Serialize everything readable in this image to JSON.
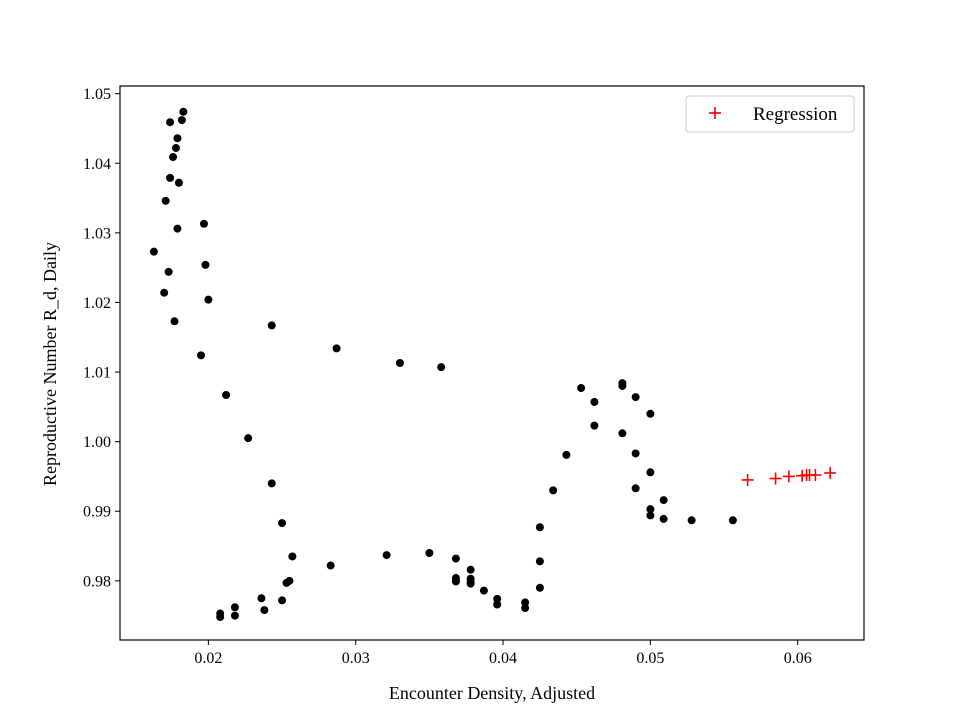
{
  "chart_data": {
    "type": "scatter",
    "xlabel": "Encounter Density, Adjusted",
    "ylabel": "Reproductive Number R_d, Daily",
    "xlim": [
      0.014,
      0.0645
    ],
    "ylim": [
      0.9715,
      1.0511
    ],
    "x_ticks": [
      0.02,
      0.03,
      0.04,
      0.05,
      0.06
    ],
    "x_tick_labels": [
      "0.02",
      "0.03",
      "0.04",
      "0.05",
      "0.06"
    ],
    "y_ticks": [
      0.98,
      0.99,
      1.0,
      1.01,
      1.02,
      1.03,
      1.04,
      1.05
    ],
    "y_tick_labels": [
      "0.98",
      "0.99",
      "1.00",
      "1.01",
      "1.02",
      "1.03",
      "1.04",
      "1.05"
    ],
    "grid": false,
    "legend_position": "top-right",
    "legend": [
      "Regression"
    ],
    "series": [
      {
        "marker": "dot",
        "color": "#000000",
        "points": [
          [
            0.0183,
            1.0474
          ],
          [
            0.0182,
            1.0462
          ],
          [
            0.0174,
            1.0459
          ],
          [
            0.0179,
            1.0436
          ],
          [
            0.0178,
            1.0422
          ],
          [
            0.0176,
            1.0409
          ],
          [
            0.0174,
            1.0379
          ],
          [
            0.018,
            1.0372
          ],
          [
            0.0171,
            1.0346
          ],
          [
            0.0197,
            1.0313
          ],
          [
            0.0179,
            1.0306
          ],
          [
            0.0163,
            1.0273
          ],
          [
            0.0198,
            1.0254
          ],
          [
            0.0173,
            1.0244
          ],
          [
            0.017,
            1.0214
          ],
          [
            0.02,
            1.0204
          ],
          [
            0.0177,
            1.0173
          ],
          [
            0.0243,
            1.0167
          ],
          [
            0.0287,
            1.0134
          ],
          [
            0.0195,
            1.0124
          ],
          [
            0.033,
            1.0113
          ],
          [
            0.0358,
            1.0107
          ],
          [
            0.0212,
            1.0067
          ],
          [
            0.0227,
            1.0005
          ],
          [
            0.0243,
            0.994
          ],
          [
            0.025,
            0.9883
          ],
          [
            0.0257,
            0.9835
          ],
          [
            0.0255,
            0.98
          ],
          [
            0.0253,
            0.9797
          ],
          [
            0.025,
            0.9772
          ],
          [
            0.0236,
            0.9775
          ],
          [
            0.0238,
            0.9758
          ],
          [
            0.0218,
            0.9762
          ],
          [
            0.0218,
            0.975
          ],
          [
            0.0208,
            0.9753
          ],
          [
            0.0208,
            0.9748
          ],
          [
            0.0283,
            0.9822
          ],
          [
            0.0321,
            0.9837
          ],
          [
            0.035,
            0.984
          ],
          [
            0.0368,
            0.9832
          ],
          [
            0.0368,
            0.9804
          ],
          [
            0.0368,
            0.9801
          ],
          [
            0.0368,
            0.9799
          ],
          [
            0.0378,
            0.9816
          ],
          [
            0.0378,
            0.9803
          ],
          [
            0.0378,
            0.9799
          ],
          [
            0.0378,
            0.9796
          ],
          [
            0.0387,
            0.9786
          ],
          [
            0.0396,
            0.9774
          ],
          [
            0.0396,
            0.9766
          ],
          [
            0.0415,
            0.9769
          ],
          [
            0.0415,
            0.9761
          ],
          [
            0.0425,
            0.979
          ],
          [
            0.0425,
            0.9828
          ],
          [
            0.0425,
            0.9877
          ],
          [
            0.0434,
            0.993
          ],
          [
            0.0443,
            0.9981
          ],
          [
            0.0453,
            1.0077
          ],
          [
            0.0462,
            1.0057
          ],
          [
            0.0462,
            1.0023
          ],
          [
            0.0481,
            1.0084
          ],
          [
            0.0481,
            1.008
          ],
          [
            0.0481,
            1.0012
          ],
          [
            0.049,
            1.0064
          ],
          [
            0.049,
            0.9983
          ],
          [
            0.049,
            0.9933
          ],
          [
            0.05,
            1.004
          ],
          [
            0.05,
            0.9956
          ],
          [
            0.05,
            0.9903
          ],
          [
            0.05,
            0.9894
          ],
          [
            0.0509,
            0.9916
          ],
          [
            0.0509,
            0.9889
          ],
          [
            0.0528,
            0.9887
          ],
          [
            0.0556,
            0.9887
          ]
        ]
      },
      {
        "name": "Regression",
        "marker": "plus",
        "color": "#ff0000",
        "points": [
          [
            0.0566,
            0.9945
          ],
          [
            0.0585,
            0.9947
          ],
          [
            0.0594,
            0.995
          ],
          [
            0.0603,
            0.9951
          ],
          [
            0.0606,
            0.9952
          ],
          [
            0.0608,
            0.9952
          ],
          [
            0.0612,
            0.9952
          ],
          [
            0.0622,
            0.9955
          ]
        ]
      }
    ]
  }
}
